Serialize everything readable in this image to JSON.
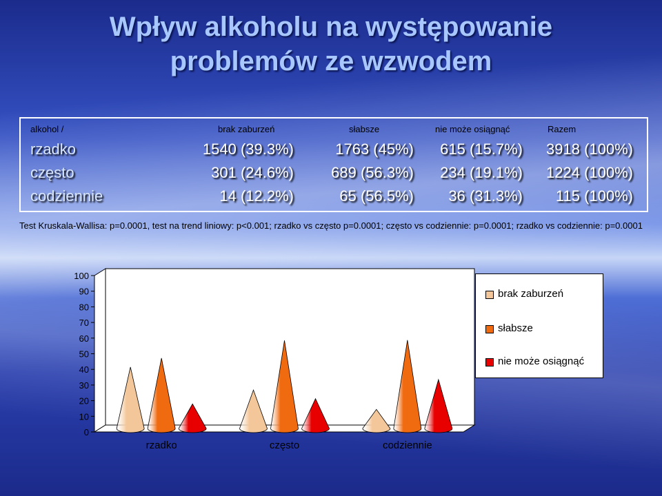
{
  "title_line1": "Wpływ alkoholu na występowanie",
  "title_line2": "problemów ze wzwodem",
  "table": {
    "headers": [
      "alkohol     /",
      "brak zaburzeń",
      "słabsze",
      "nie może osiągnąć",
      "Razem"
    ],
    "rows": [
      {
        "label": "rzadko",
        "cells": [
          "1540 (39.3%)",
          "1763 (45%)",
          "615 (15.7%)",
          "3918 (100%)"
        ]
      },
      {
        "label": "często",
        "cells": [
          "301 (24.6%)",
          "689 (56.3%)",
          "234 (19.1%)",
          "1224 (100%)"
        ]
      },
      {
        "label": "codziennie",
        "cells": [
          "14 (12.2%)",
          "65 (56.5%)",
          "36 (31.3%)",
          "115 (100%)"
        ]
      }
    ]
  },
  "stats_text": "Test Kruskala-Wallisa: p=0.0001, test na trend liniowy: p<0.001; rzadko vs często p=0.0001; często vs codziennie: p=0.0001; rzadko vs codziennie: p=0.0001",
  "chart_data": {
    "type": "bar",
    "shape": "cone",
    "categories": [
      "rzadko",
      "często",
      "codziennie"
    ],
    "series": [
      {
        "name": "brak zaburzeń",
        "color": "#f4c79a",
        "values": [
          39.3,
          24.6,
          12.2
        ]
      },
      {
        "name": "słabsze",
        "color": "#f06a10",
        "values": [
          45,
          56.3,
          56.5
        ]
      },
      {
        "name": "nie może osiągnąć",
        "color": "#e80000",
        "values": [
          15.7,
          19.1,
          31.3
        ]
      }
    ],
    "yticks": [
      "0",
      "10",
      "20",
      "30",
      "40",
      "50",
      "60",
      "70",
      "80",
      "90",
      "100"
    ],
    "ylim": [
      0,
      100
    ],
    "grid": false,
    "legend": "right"
  }
}
